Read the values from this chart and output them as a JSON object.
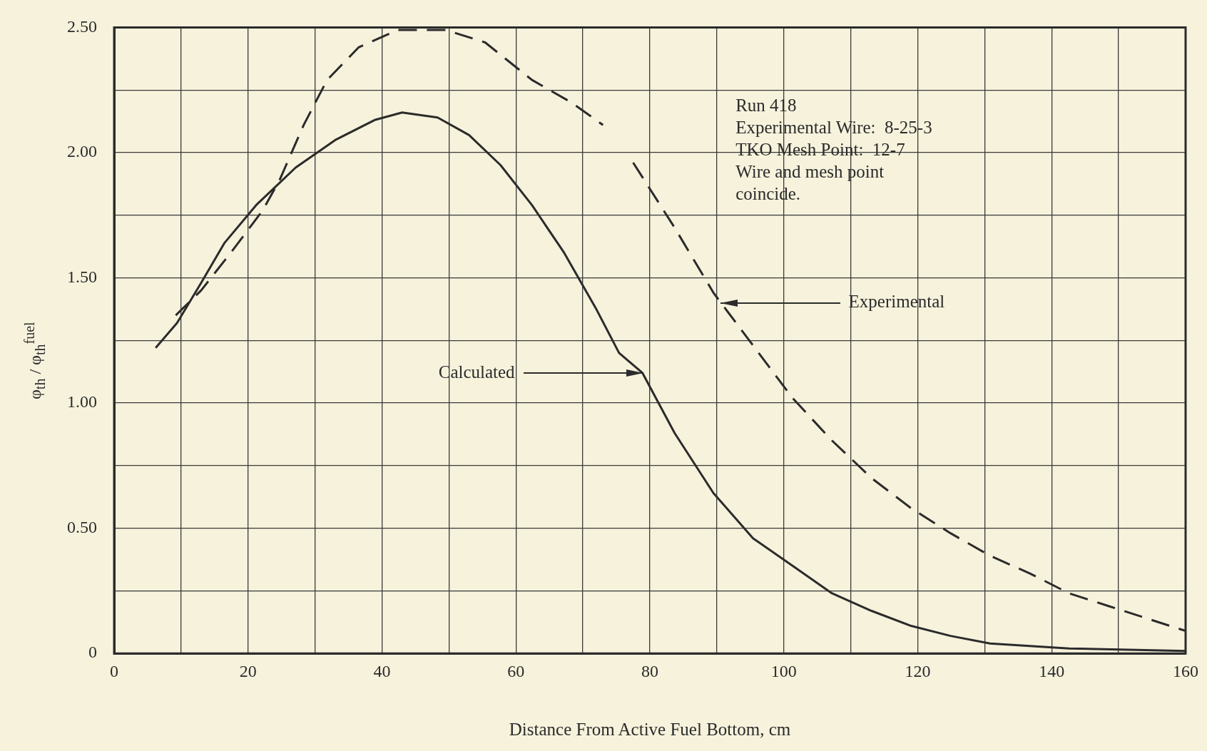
{
  "chart_data": {
    "type": "line",
    "xlabel": "Distance From Active Fuel Bottom, cm",
    "ylabel": "φ$_{th}$ / φ$_{th}$$^{fuel}$",
    "xlim": [
      0,
      160
    ],
    "ylim": [
      0,
      2.5
    ],
    "xticks": [
      0,
      {
        "value": 10,
        "label": null
      },
      20,
      {
        "value": 30,
        "label": null
      },
      40,
      {
        "value": 50,
        "label": null
      },
      60,
      {
        "value": 70,
        "label": null
      },
      80,
      {
        "value": 90,
        "label": null
      },
      100,
      {
        "value": 110,
        "label": null
      },
      120,
      {
        "value": 130,
        "label": null
      },
      140,
      {
        "value": 150,
        "label": null
      },
      160
    ],
    "yticks": [
      {
        "value": 0,
        "label": "0"
      },
      {
        "value": 0.25,
        "label": null
      },
      {
        "value": 0.5,
        "label": "0.50"
      },
      {
        "value": 0.75,
        "label": null
      },
      {
        "value": 1,
        "label": "1.00"
      },
      {
        "value": 1.25,
        "label": null
      },
      {
        "value": 1.5,
        "label": "1.50"
      },
      {
        "value": 1.75,
        "label": null
      },
      {
        "value": 2,
        "label": "2.00"
      },
      {
        "value": 2.25,
        "label": null
      },
      {
        "value": 2.5,
        "label": "2.50"
      }
    ],
    "grid": true,
    "legend": false,
    "marker": "none",
    "series": [
      {
        "color": "#2b2b2b",
        "line_style": "solid",
        "x": [
          6.2,
          9.4,
          13,
          16.5,
          21.2,
          27.1,
          33,
          38.9,
          43,
          48.3,
          53,
          57.7,
          62.4,
          67.2,
          71.9,
          75.4,
          78.9,
          83.7,
          89.5,
          95.4,
          101.3,
          107.2,
          113.1,
          119,
          124.9,
          130.8,
          142.6,
          160
        ],
        "values": [
          1.22,
          1.32,
          1.48,
          1.64,
          1.79,
          1.94,
          2.05,
          2.13,
          2.16,
          2.14,
          2.07,
          1.95,
          1.79,
          1.6,
          1.38,
          1.2,
          1.12,
          0.88,
          0.64,
          0.46,
          0.35,
          0.24,
          0.17,
          0.11,
          0.07,
          0.04,
          0.02,
          0.01
        ]
      },
      {
        "color": "#2b2b2b",
        "line_style": "dashed",
        "x": [
          9.2,
          13,
          17.7,
          22.2,
          24.7,
          28.3,
          31.8,
          36.5,
          42.4,
          49.5,
          55.4,
          62.4,
          68.3,
          73,
          75,
          77.5,
          83.7,
          89.5,
          95.4,
          101.3,
          107.2,
          113.1,
          119,
          124.9,
          130.8,
          136.7,
          142.6,
          148.4,
          160
        ],
        "values": [
          1.35,
          1.45,
          1.61,
          1.77,
          1.89,
          2.11,
          2.29,
          2.42,
          2.49,
          2.49,
          2.44,
          2.29,
          2.2,
          2.11,
          null,
          1.96,
          1.7,
          1.44,
          1.23,
          1.02,
          0.85,
          0.7,
          0.58,
          0.48,
          0.39,
          0.32,
          0.24,
          0.19,
          0.09
        ]
      }
    ],
    "annotations": [
      "Run 418\nExperimental Wire:  8-25-3\nTKO Mesh Point:  12-7\nWire and mesh point\ncoincide.",
      {
        "text": "Calculated",
        "x": 79,
        "y": 1.12
      },
      {
        "text": "Experimental",
        "x": 90.5,
        "y": 1.4
      }
    ]
  }
}
